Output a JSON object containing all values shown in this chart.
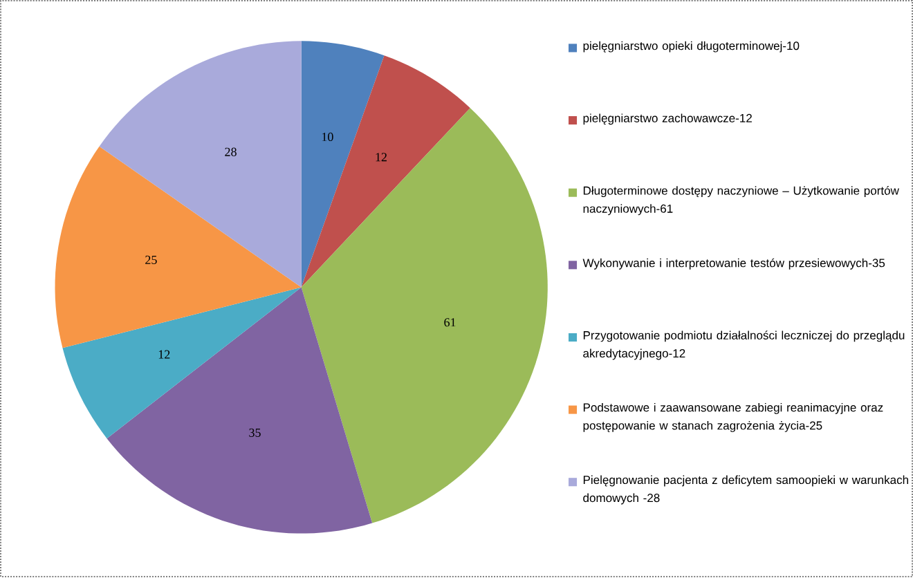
{
  "chart_data": {
    "type": "pie",
    "categories": [
      "pielęgniarstwo opieki długoterminowej-10",
      "pielęgniarstwo zachowawcze-12",
      "Długoterminowe dostępy naczyniowe – Użytkowanie portów naczyniowych-61",
      "Wykonywanie i interpretowanie testów przesiewowych-35",
      "Przygotowanie podmiotu działalności leczniczej do przeglądu akredytacyjnego-12",
      "Podstawowe i zaawansowane zabiegi reanimacyjne oraz postępowanie w stanach zagrożenia życia-25",
      "Pielęgnowanie pacjenta z deficytem samoopieki w warunkach domowych -28"
    ],
    "values": [
      10,
      12,
      61,
      35,
      12,
      25,
      28
    ],
    "colors": [
      "#4f81bd",
      "#c0504d",
      "#9bbb59",
      "#8064a2",
      "#4bacc6",
      "#f79646",
      "#a9aadb"
    ],
    "data_labels": true,
    "legend": "right"
  }
}
